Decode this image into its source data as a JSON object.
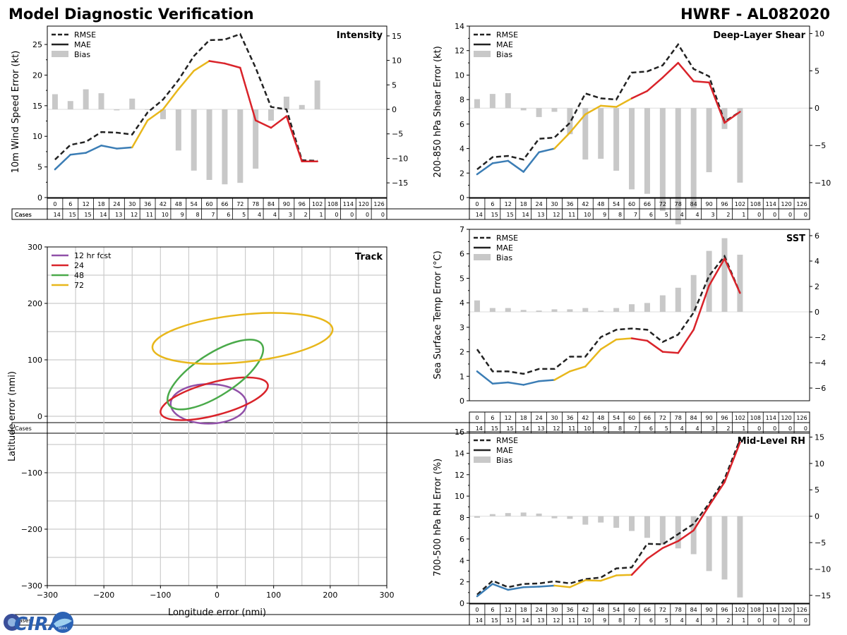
{
  "header": {
    "title": "Model Diagnostic Verification",
    "subtitle": "HWRF - AL082020"
  },
  "logo": {
    "text": "CIRA",
    "badge": "NOAA"
  },
  "colors": {
    "rmse": "#222222",
    "mae_early": "#3b7db5",
    "mae_mid": "#e8b71b",
    "mae_late": "#d9232a",
    "bias": "#c8c8c8",
    "purple": "#9050a8",
    "red": "#d9232a",
    "green": "#4aaa4a",
    "yellow": "#e8b71b",
    "grid": "#cccccc"
  },
  "chart_data": [
    {
      "id": "intensity",
      "type": "line",
      "title": "Intensity",
      "ylabel": "10m Wind Speed Error (kt)",
      "ylim": [
        0,
        28
      ],
      "yticks": [
        0,
        5,
        10,
        15,
        20,
        25
      ],
      "y2lim": [
        -18,
        17
      ],
      "y2ticks": [
        -15,
        -10,
        -5,
        0,
        5,
        10,
        15
      ],
      "legend": [
        "RMSE",
        "MAE",
        "Bias"
      ],
      "x": [
        0,
        6,
        12,
        18,
        24,
        30,
        36,
        42,
        48,
        54,
        60,
        66,
        72,
        78,
        84,
        90,
        96,
        102,
        108,
        114,
        120,
        126
      ],
      "rmse": [
        6.2,
        8.6,
        9.1,
        10.7,
        10.6,
        10.3,
        13.9,
        16.0,
        19.2,
        23.1,
        25.7,
        25.8,
        26.7,
        21.2,
        14.8,
        14.4,
        6.1,
        6.0,
        null,
        null,
        null,
        null
      ],
      "mae": [
        4.6,
        7.0,
        7.3,
        8.5,
        8.0,
        8.2,
        12.6,
        14.4,
        17.7,
        20.7,
        22.3,
        21.9,
        21.2,
        12.6,
        11.4,
        13.3,
        5.9,
        5.9,
        null,
        null,
        null,
        null
      ],
      "bias": [
        3.1,
        1.7,
        4.1,
        3.3,
        -0.2,
        2.2,
        -0.1,
        -2.0,
        -8.4,
        -12.5,
        -14.4,
        -15.3,
        -15.0,
        -12.1,
        -2.3,
        2.6,
        0.9,
        5.9,
        null,
        null,
        null,
        null
      ],
      "cases": [
        14,
        15,
        15,
        14,
        13,
        12,
        11,
        10,
        9,
        8,
        7,
        6,
        5,
        4,
        4,
        3,
        2,
        1,
        0,
        0,
        0,
        0
      ],
      "cases_label": "Cases"
    },
    {
      "id": "shear",
      "type": "line",
      "title": "Deep-Layer Shear",
      "ylabel": "200-850 hPa Shear Error (kt)",
      "ylim": [
        0,
        14
      ],
      "yticks": [
        0,
        2,
        4,
        6,
        8,
        10,
        12,
        14
      ],
      "y2lim": [
        -12,
        11
      ],
      "y2ticks": [
        -10,
        -5,
        0,
        5,
        10
      ],
      "legend": [
        "RMSE",
        "MAE",
        "Bias"
      ],
      "x": [
        0,
        6,
        12,
        18,
        24,
        30,
        36,
        42,
        48,
        54,
        60,
        66,
        72,
        78,
        84,
        90,
        96,
        102,
        108,
        114,
        120,
        126
      ],
      "rmse": [
        2.3,
        3.3,
        3.4,
        3.1,
        4.8,
        4.9,
        6.1,
        8.5,
        8.1,
        8.0,
        10.2,
        10.3,
        10.8,
        12.5,
        10.5,
        9.9,
        6.2,
        7.0,
        null,
        null,
        null,
        null
      ],
      "mae": [
        1.9,
        2.8,
        3.0,
        2.1,
        3.7,
        4.0,
        5.3,
        6.8,
        7.5,
        7.4,
        8.1,
        8.7,
        9.8,
        11.0,
        9.5,
        9.4,
        6.1,
        7.0,
        null,
        null,
        null,
        null
      ],
      "bias": [
        1.2,
        1.9,
        2.0,
        -0.3,
        -1.2,
        -0.5,
        -3.5,
        -6.9,
        -6.8,
        -8.4,
        -10.9,
        -11.5,
        -13.8,
        -15.6,
        -13.4,
        -8.6,
        -2.8,
        -10.0,
        null,
        null,
        null,
        null
      ],
      "cases": [
        14,
        15,
        15,
        14,
        13,
        12,
        11,
        10,
        9,
        8,
        7,
        6,
        5,
        4,
        4,
        3,
        2,
        1,
        0,
        0,
        0,
        0
      ],
      "cases_label": "Cases"
    },
    {
      "id": "sst",
      "type": "line",
      "title": "SST",
      "ylabel": "Sea Surface Temp Error (°C)",
      "ylim": [
        0,
        7
      ],
      "yticks": [
        0,
        1,
        2,
        3,
        4,
        5,
        6,
        7
      ],
      "y2lim": [
        -7,
        6.5
      ],
      "y2ticks": [
        -6,
        -4,
        -2,
        0,
        2,
        4,
        6
      ],
      "legend": [
        "RMSE",
        "MAE",
        "Bias"
      ],
      "x": [
        0,
        6,
        12,
        18,
        24,
        30,
        36,
        42,
        48,
        54,
        60,
        66,
        72,
        78,
        84,
        90,
        96,
        102,
        108,
        114,
        120,
        126
      ],
      "rmse": [
        2.1,
        1.2,
        1.2,
        1.1,
        1.3,
        1.3,
        1.8,
        1.8,
        2.6,
        2.9,
        2.95,
        2.9,
        2.4,
        2.7,
        3.6,
        5.1,
        5.9,
        4.4,
        null,
        null,
        null,
        null
      ],
      "mae": [
        1.2,
        0.7,
        0.75,
        0.65,
        0.8,
        0.85,
        1.2,
        1.4,
        2.1,
        2.5,
        2.55,
        2.45,
        2.0,
        1.95,
        2.9,
        4.7,
        5.8,
        4.4,
        null,
        null,
        null,
        null
      ],
      "bias": [
        0.9,
        0.3,
        0.3,
        0.15,
        0.1,
        0.2,
        0.2,
        0.3,
        0.1,
        0.3,
        0.6,
        0.7,
        1.3,
        1.9,
        2.9,
        4.8,
        5.8,
        4.5,
        null,
        null,
        null,
        null
      ],
      "cases": [
        14,
        15,
        15,
        14,
        13,
        12,
        11,
        10,
        9,
        8,
        7,
        6,
        5,
        4,
        4,
        3,
        2,
        1,
        0,
        0,
        0,
        0
      ],
      "cases_label": "Cases"
    },
    {
      "id": "rh",
      "type": "line",
      "title": "Mid-Level RH",
      "ylabel": "700-500 hPa RH Error (%)",
      "ylim": [
        0,
        16
      ],
      "yticks": [
        0,
        2,
        4,
        6,
        8,
        10,
        12,
        14,
        16
      ],
      "y2lim": [
        -16.5,
        16
      ],
      "y2ticks": [
        -15,
        -10,
        -5,
        0,
        5,
        10,
        15
      ],
      "legend": [
        "RMSE",
        "MAE",
        "Bias"
      ],
      "x": [
        0,
        6,
        12,
        18,
        24,
        30,
        36,
        42,
        48,
        54,
        60,
        66,
        72,
        78,
        84,
        90,
        96,
        102,
        108,
        114,
        120,
        126
      ],
      "rmse": [
        0.8,
        2.1,
        1.5,
        1.8,
        1.85,
        2.05,
        1.85,
        2.25,
        2.4,
        3.25,
        3.35,
        5.55,
        5.5,
        6.45,
        7.4,
        9.3,
        11.6,
        15.3,
        null,
        null,
        null,
        null
      ],
      "mae": [
        0.65,
        1.8,
        1.25,
        1.5,
        1.55,
        1.65,
        1.5,
        2.15,
        2.1,
        2.6,
        2.65,
        4.15,
        5.15,
        5.8,
        6.8,
        9.1,
        11.3,
        15.0,
        null,
        null,
        null,
        null
      ],
      "bias": [
        -0.3,
        0.4,
        0.6,
        0.7,
        0.5,
        -0.4,
        -0.5,
        -1.6,
        -1.2,
        -2.2,
        -2.8,
        -4.1,
        -5.4,
        -6.1,
        -7.2,
        -10.4,
        -12.0,
        -15.4,
        null,
        null,
        null,
        null
      ],
      "cases": [
        14,
        15,
        15,
        14,
        13,
        12,
        11,
        10,
        9,
        8,
        7,
        6,
        5,
        4,
        4,
        3,
        2,
        1,
        0,
        0,
        0,
        0
      ],
      "cases_label": "Cases"
    },
    {
      "id": "track",
      "type": "scatter",
      "title": "Track",
      "xlabel": "Longitude error (nmi)",
      "ylabel": "Latitude error (nmi)",
      "xlim": [
        -300,
        300
      ],
      "ylim": [
        -300,
        300
      ],
      "xticks": [
        -300,
        -200,
        -100,
        0,
        100,
        200,
        300
      ],
      "yticks": [
        -300,
        -200,
        -100,
        0,
        100,
        200,
        300
      ],
      "grid": true,
      "legend_position": "top-left",
      "ellipses": [
        {
          "label": "12 hr fcst",
          "color": "#9050a8",
          "cx": -15,
          "cy": 22,
          "rx": 67,
          "ry": 35,
          "angle": 0
        },
        {
          "label": "24",
          "color": "#d9232a",
          "cx": -5,
          "cy": 31,
          "rx": 98,
          "ry": 29,
          "angle": 15
        },
        {
          "label": "48",
          "color": "#4aaa4a",
          "cx": -3,
          "cy": 74,
          "rx": 98,
          "ry": 37,
          "angle": 33
        },
        {
          "label": "72",
          "color": "#e8b71b",
          "cx": 45,
          "cy": 138,
          "rx": 160,
          "ry": 42,
          "angle": 6
        }
      ]
    }
  ]
}
